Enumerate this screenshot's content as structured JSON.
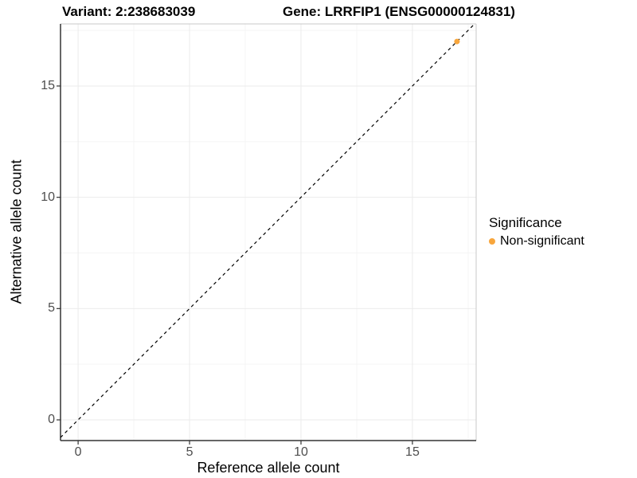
{
  "header": {
    "variant_title": "Variant: 2:238683039",
    "gene_title": "Gene: LRRFIP1 (ENSG00000124831)"
  },
  "chart_data": {
    "type": "scatter",
    "xlabel": "Reference allele count",
    "ylabel": "Alternative allele count",
    "xlim": [
      -0.79,
      17.86
    ],
    "ylim": [
      -0.93,
      17.79
    ],
    "xticks": [
      0,
      5,
      10,
      15
    ],
    "yticks": [
      0,
      5,
      10,
      15
    ],
    "xminor": [
      2.5,
      7.5,
      12.5,
      17.5
    ],
    "yminor": [
      2.5,
      7.5,
      12.5,
      17.5
    ],
    "grid": true,
    "legend_position": "right",
    "reference_line": {
      "kind": "identity",
      "equation": "y = x",
      "style": "dashed",
      "color": "#000000"
    },
    "series": [
      {
        "name": "Non-significant",
        "color": "#F8A63C",
        "points": [
          {
            "x": 17,
            "y": 17
          }
        ]
      }
    ],
    "legend": {
      "title": "Significance",
      "items": [
        {
          "label": "Non-significant",
          "color": "#F8A63C"
        }
      ]
    },
    "style": {
      "grid_major_color": "#ebebeb",
      "grid_minor_color": "#f5f5f5",
      "panel_border_color": "#c8c8c8",
      "axis_line_color": "#333333",
      "tick_label_color": "#4d4d4d"
    }
  }
}
